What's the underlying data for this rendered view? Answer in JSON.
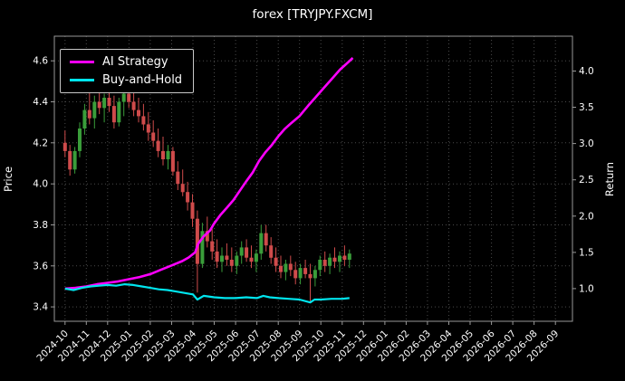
{
  "title": "forex [TRYJPY.FXCM]",
  "axes": {
    "left_label": "Price",
    "right_label": "Return"
  },
  "legend": {
    "items": [
      {
        "label": "AI Strategy",
        "color": "#ff00ff"
      },
      {
        "label": "Buy-and-Hold",
        "color": "#00e5ee"
      }
    ]
  },
  "chart_data": {
    "type": "candlestick",
    "title": "forex [TRYJPY.FXCM]",
    "xlabel": "",
    "ylabel": "Price",
    "y2label": "Return",
    "grid": true,
    "legend_position": "upper left",
    "x_tick_labels": [
      "2024-10",
      "2024-11",
      "2024-12",
      "2025-01",
      "2025-02",
      "2025-03",
      "2025-04",
      "2025-05",
      "2025-06",
      "2025-07",
      "2025-08",
      "2025-09",
      "2025-10",
      "2025-11",
      "2025-12",
      "2026-01",
      "2026-02",
      "2026-03",
      "2026-04",
      "2026-05",
      "2026-06",
      "2026-07",
      "2026-08",
      "2026-09"
    ],
    "price_ticks": [
      3.4,
      3.6,
      3.8,
      4.0,
      4.2,
      4.4,
      4.6
    ],
    "return_ticks": [
      1.0,
      1.5,
      2.0,
      2.5,
      3.0,
      3.5,
      4.0
    ],
    "x_range": [
      -0.5,
      23.8
    ],
    "price_range": [
      3.33,
      4.72
    ],
    "return_range": [
      0.55,
      4.48
    ],
    "colors": {
      "up": "#3a9d3a",
      "down": "#cf4b4b",
      "background": "#000000",
      "grid": "#4a4a4a",
      "spine": "#999999",
      "text": "#ffffff"
    },
    "candles_ohlc": {
      "format": [
        "month_index",
        "open",
        "high",
        "low",
        "close"
      ],
      "unit": "month_index (0 = 2024-10)",
      "data": [
        [
          0.0,
          4.2,
          4.26,
          4.13,
          4.16
        ],
        [
          0.23,
          4.16,
          4.19,
          4.04,
          4.07
        ],
        [
          0.46,
          4.07,
          4.18,
          4.05,
          4.16
        ],
        [
          0.69,
          4.16,
          4.3,
          4.13,
          4.27
        ],
        [
          0.92,
          4.27,
          4.39,
          4.24,
          4.36
        ],
        [
          1.15,
          4.36,
          4.45,
          4.29,
          4.32
        ],
        [
          1.38,
          4.32,
          4.43,
          4.27,
          4.4
        ],
        [
          1.61,
          4.4,
          4.46,
          4.34,
          4.37
        ],
        [
          1.84,
          4.37,
          4.44,
          4.3,
          4.42
        ],
        [
          2.07,
          4.42,
          4.46,
          4.35,
          4.38
        ],
        [
          2.3,
          4.38,
          4.43,
          4.27,
          4.3
        ],
        [
          2.53,
          4.3,
          4.42,
          4.28,
          4.4
        ],
        [
          2.76,
          4.4,
          4.47,
          4.33,
          4.44
        ],
        [
          2.99,
          4.44,
          4.47,
          4.37,
          4.4
        ],
        [
          3.22,
          4.4,
          4.45,
          4.33,
          4.36
        ],
        [
          3.45,
          4.36,
          4.42,
          4.3,
          4.33
        ],
        [
          3.68,
          4.33,
          4.39,
          4.26,
          4.29
        ],
        [
          3.91,
          4.29,
          4.35,
          4.21,
          4.25
        ],
        [
          4.14,
          4.25,
          4.31,
          4.18,
          4.21
        ],
        [
          4.37,
          4.21,
          4.27,
          4.13,
          4.16
        ],
        [
          4.6,
          4.16,
          4.23,
          4.09,
          4.12
        ],
        [
          4.83,
          4.12,
          4.19,
          4.07,
          4.16
        ],
        [
          5.06,
          4.16,
          4.18,
          4.04,
          4.06
        ],
        [
          5.29,
          4.06,
          4.11,
          3.97,
          4.0
        ],
        [
          5.52,
          4.0,
          4.07,
          3.94,
          3.96
        ],
        [
          5.75,
          3.96,
          4.01,
          3.87,
          3.91
        ],
        [
          5.98,
          3.91,
          3.95,
          3.79,
          3.83
        ],
        [
          6.21,
          3.83,
          3.87,
          3.47,
          3.61
        ],
        [
          6.44,
          3.61,
          3.81,
          3.59,
          3.77
        ],
        [
          6.67,
          3.77,
          3.84,
          3.69,
          3.72
        ],
        [
          6.9,
          3.72,
          3.78,
          3.63,
          3.67
        ],
        [
          7.13,
          3.67,
          3.73,
          3.59,
          3.62
        ],
        [
          7.36,
          3.62,
          3.69,
          3.57,
          3.65
        ],
        [
          7.59,
          3.65,
          3.71,
          3.6,
          3.63
        ],
        [
          7.82,
          3.63,
          3.69,
          3.57,
          3.6
        ],
        [
          8.05,
          3.6,
          3.67,
          3.56,
          3.65
        ],
        [
          8.28,
          3.65,
          3.72,
          3.61,
          3.69
        ],
        [
          8.51,
          3.69,
          3.73,
          3.62,
          3.64
        ],
        [
          8.74,
          3.64,
          3.7,
          3.59,
          3.62
        ],
        [
          8.97,
          3.62,
          3.68,
          3.57,
          3.66
        ],
        [
          9.2,
          3.66,
          3.8,
          3.63,
          3.76
        ],
        [
          9.43,
          3.76,
          3.8,
          3.67,
          3.7
        ],
        [
          9.66,
          3.7,
          3.74,
          3.61,
          3.64
        ],
        [
          9.89,
          3.64,
          3.69,
          3.57,
          3.6
        ],
        [
          10.12,
          3.6,
          3.65,
          3.54,
          3.57
        ],
        [
          10.35,
          3.57,
          3.63,
          3.53,
          3.61
        ],
        [
          10.58,
          3.61,
          3.65,
          3.55,
          3.58
        ],
        [
          10.81,
          3.58,
          3.62,
          3.51,
          3.54
        ],
        [
          11.04,
          3.54,
          3.61,
          3.51,
          3.59
        ],
        [
          11.27,
          3.59,
          3.63,
          3.54,
          3.56
        ],
        [
          11.5,
          3.56,
          3.61,
          3.42,
          3.54
        ],
        [
          11.73,
          3.54,
          3.6,
          3.5,
          3.58
        ],
        [
          11.96,
          3.58,
          3.65,
          3.55,
          3.63
        ],
        [
          12.19,
          3.63,
          3.67,
          3.57,
          3.6
        ],
        [
          12.42,
          3.6,
          3.66,
          3.56,
          3.64
        ],
        [
          12.65,
          3.64,
          3.69,
          3.59,
          3.62
        ],
        [
          12.88,
          3.62,
          3.67,
          3.57,
          3.65
        ],
        [
          13.11,
          3.65,
          3.7,
          3.6,
          3.63
        ],
        [
          13.34,
          3.63,
          3.68,
          3.59,
          3.66
        ]
      ]
    },
    "series": [
      {
        "name": "AI Strategy",
        "axis": "return",
        "color": "#ff00ff",
        "points": [
          [
            0.0,
            1.0
          ],
          [
            0.5,
            1.01
          ],
          [
            1.0,
            1.03
          ],
          [
            1.5,
            1.06
          ],
          [
            2.0,
            1.08
          ],
          [
            2.5,
            1.1
          ],
          [
            3.0,
            1.13
          ],
          [
            3.5,
            1.16
          ],
          [
            4.0,
            1.2
          ],
          [
            4.5,
            1.26
          ],
          [
            5.0,
            1.32
          ],
          [
            5.5,
            1.38
          ],
          [
            5.8,
            1.43
          ],
          [
            6.1,
            1.5
          ],
          [
            6.25,
            1.62
          ],
          [
            6.5,
            1.72
          ],
          [
            6.8,
            1.8
          ],
          [
            7.0,
            1.9
          ],
          [
            7.3,
            2.02
          ],
          [
            7.6,
            2.12
          ],
          [
            7.9,
            2.22
          ],
          [
            8.2,
            2.35
          ],
          [
            8.5,
            2.48
          ],
          [
            8.8,
            2.6
          ],
          [
            9.1,
            2.76
          ],
          [
            9.4,
            2.88
          ],
          [
            9.7,
            2.98
          ],
          [
            10.0,
            3.1
          ],
          [
            10.3,
            3.2
          ],
          [
            10.6,
            3.28
          ],
          [
            11.0,
            3.38
          ],
          [
            11.4,
            3.52
          ],
          [
            11.7,
            3.62
          ],
          [
            12.0,
            3.72
          ],
          [
            12.3,
            3.82
          ],
          [
            12.6,
            3.92
          ],
          [
            12.9,
            4.02
          ],
          [
            13.2,
            4.1
          ],
          [
            13.5,
            4.18
          ]
        ]
      },
      {
        "name": "Buy-and-Hold",
        "axis": "return",
        "color": "#00e5ee",
        "points": [
          [
            0.0,
            1.0
          ],
          [
            0.4,
            0.98
          ],
          [
            0.8,
            1.01
          ],
          [
            1.2,
            1.03
          ],
          [
            1.6,
            1.04
          ],
          [
            2.0,
            1.05
          ],
          [
            2.4,
            1.04
          ],
          [
            2.8,
            1.06
          ],
          [
            3.2,
            1.05
          ],
          [
            3.6,
            1.03
          ],
          [
            4.0,
            1.01
          ],
          [
            4.4,
            0.99
          ],
          [
            4.8,
            0.98
          ],
          [
            5.2,
            0.96
          ],
          [
            5.6,
            0.94
          ],
          [
            6.0,
            0.92
          ],
          [
            6.21,
            0.85
          ],
          [
            6.5,
            0.9
          ],
          [
            7.0,
            0.88
          ],
          [
            7.5,
            0.87
          ],
          [
            8.0,
            0.87
          ],
          [
            8.5,
            0.88
          ],
          [
            9.0,
            0.87
          ],
          [
            9.3,
            0.9
          ],
          [
            9.6,
            0.88
          ],
          [
            10.0,
            0.87
          ],
          [
            10.5,
            0.86
          ],
          [
            11.0,
            0.85
          ],
          [
            11.5,
            0.81
          ],
          [
            11.7,
            0.85
          ],
          [
            12.0,
            0.85
          ],
          [
            12.5,
            0.86
          ],
          [
            13.0,
            0.86
          ],
          [
            13.34,
            0.87
          ]
        ]
      }
    ]
  }
}
